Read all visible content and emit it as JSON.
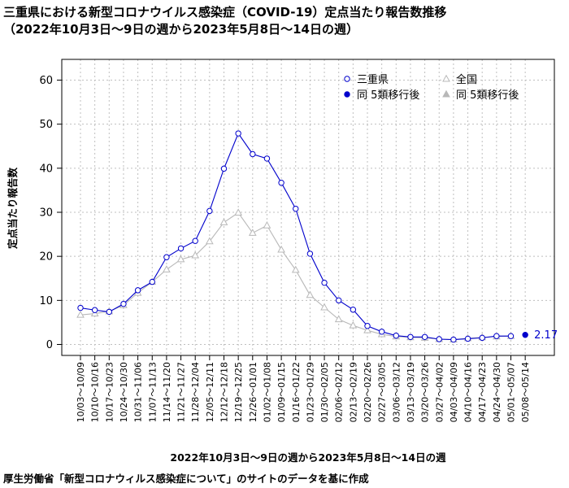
{
  "title_line1": "三重県における新型コロナウイルス感染症（COVID-19）定点当たり報告数推移",
  "title_line2": "（2022年10月3日〜9日の週から2023年5月8日〜14日の週）",
  "source_note": "厚生労働省「新型コロナウィルス感染症について」のサイトのデータを基に作成",
  "colors": {
    "mie": "#0000cc",
    "national": "#b8b8b8",
    "grid": "#bfbfbf",
    "label_blue": "#0000cc"
  },
  "chart_data": {
    "type": "line",
    "xlabel": "2022年10月3日〜9日の週から2023年5月8日〜14日の週",
    "ylabel": "定点当たり報告数",
    "ylim": [
      0,
      60
    ],
    "yticks": [
      0,
      10,
      20,
      30,
      40,
      50,
      60
    ],
    "grid": true,
    "legend_position": "top-right",
    "categories": [
      "10/03〜10/09",
      "10/10〜10/16",
      "10/17〜10/23",
      "10/24〜10/30",
      "10/31〜11/06",
      "11/07〜11/13",
      "11/14〜11/20",
      "11/21〜11/27",
      "11/28〜12/04",
      "12/05〜12/11",
      "12/12〜12/18",
      "12/19〜12/25",
      "12/26〜01/01",
      "01/02〜01/08",
      "01/09〜01/15",
      "01/16〜01/22",
      "01/23〜01/29",
      "01/30〜02/05",
      "02/06〜02/12",
      "02/13〜02/19",
      "02/20〜02/26",
      "02/27〜03/05",
      "03/06〜03/12",
      "03/13〜03/19",
      "03/20〜03/26",
      "03/27〜04/02",
      "04/03〜04/09",
      "04/10〜04/16",
      "04/17〜04/23",
      "04/24〜04/30",
      "05/01〜05/07",
      "05/08〜05/14"
    ],
    "series": [
      {
        "name": "三重県",
        "marker": "open-circle",
        "values": [
          8.3,
          7.8,
          7.4,
          9.2,
          12.3,
          14.2,
          19.8,
          21.8,
          23.5,
          30.3,
          39.9,
          47.9,
          43.2,
          42.2,
          36.7,
          30.8,
          20.6,
          14.0,
          10.0,
          7.9,
          4.2,
          2.9,
          2.0,
          1.7,
          1.7,
          1.2,
          1.1,
          1.3,
          1.5,
          1.9,
          1.9,
          null
        ]
      },
      {
        "name": "全国",
        "marker": "open-triangle",
        "values": [
          6.7,
          7.0,
          7.5,
          8.9,
          11.7,
          14.2,
          17.0,
          19.3,
          20.2,
          23.4,
          27.7,
          29.9,
          25.3,
          27.0,
          21.5,
          16.9,
          11.2,
          8.4,
          5.7,
          4.3,
          3.2,
          2.3,
          1.8,
          1.6,
          1.5,
          1.2,
          1.1,
          1.4,
          1.6,
          1.8,
          1.9,
          null
        ]
      },
      {
        "name": "同 5類移行後",
        "group": "三重県",
        "marker": "filled-circle",
        "values": [
          null,
          null,
          null,
          null,
          null,
          null,
          null,
          null,
          null,
          null,
          null,
          null,
          null,
          null,
          null,
          null,
          null,
          null,
          null,
          null,
          null,
          null,
          null,
          null,
          null,
          null,
          null,
          null,
          null,
          null,
          null,
          2.17
        ]
      },
      {
        "name": "同 5類移行後",
        "group": "全国",
        "marker": "filled-triangle",
        "values": [
          null,
          null,
          null,
          null,
          null,
          null,
          null,
          null,
          null,
          null,
          null,
          null,
          null,
          null,
          null,
          null,
          null,
          null,
          null,
          null,
          null,
          null,
          null,
          null,
          null,
          null,
          null,
          null,
          null,
          null,
          null,
          null
        ]
      }
    ],
    "annotations": [
      {
        "category": "05/08〜05/14",
        "text": "2.17"
      }
    ]
  }
}
